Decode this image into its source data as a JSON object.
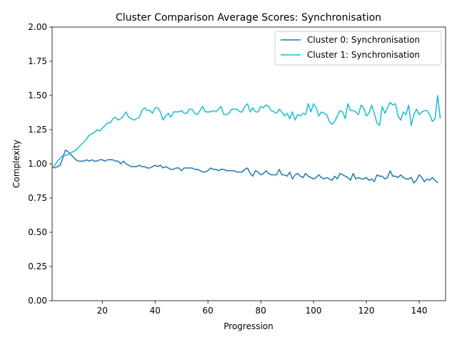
{
  "chart_data": {
    "type": "line",
    "title": "Cluster Comparison Average Scores: Synchronisation",
    "xlabel": "Progression",
    "ylabel": "Complexity",
    "xlim": [
      1,
      150
    ],
    "ylim": [
      0,
      2
    ],
    "xticks": [
      20,
      40,
      60,
      80,
      100,
      120,
      140
    ],
    "yticks": [
      0.0,
      0.25,
      0.5,
      0.75,
      1.0,
      1.25,
      1.5,
      1.75,
      2.0
    ],
    "xtick_labels": [
      "20",
      "40",
      "60",
      "80",
      "100",
      "120",
      "140"
    ],
    "ytick_labels": [
      "0.00",
      "0.25",
      "0.50",
      "0.75",
      "1.00",
      "1.25",
      "1.50",
      "1.75",
      "2.00"
    ],
    "grid": false,
    "legend": "top-right",
    "series": [
      {
        "name": "Cluster 0: Synchronisation",
        "color": "#1f77b4",
        "x_start": 1,
        "values": [
          0.98,
          0.97,
          0.98,
          0.99,
          1.04,
          1.1,
          1.09,
          1.07,
          1.05,
          1.03,
          1.02,
          1.02,
          1.02,
          1.03,
          1.02,
          1.03,
          1.02,
          1.02,
          1.03,
          1.03,
          1.02,
          1.03,
          1.03,
          1.03,
          1.02,
          1.02,
          1.0,
          1.02,
          1.0,
          0.99,
          0.98,
          0.98,
          0.98,
          0.99,
          0.98,
          0.98,
          0.97,
          0.97,
          0.98,
          0.99,
          0.98,
          0.99,
          0.97,
          0.98,
          0.97,
          0.96,
          0.96,
          0.97,
          0.97,
          0.95,
          0.97,
          0.97,
          0.97,
          0.97,
          0.96,
          0.96,
          0.95,
          0.94,
          0.94,
          0.95,
          0.97,
          0.96,
          0.96,
          0.95,
          0.96,
          0.96,
          0.95,
          0.95,
          0.95,
          0.95,
          0.94,
          0.94,
          0.94,
          0.96,
          0.97,
          0.93,
          0.91,
          0.95,
          0.94,
          0.92,
          0.93,
          0.95,
          0.93,
          0.92,
          0.92,
          0.92,
          0.96,
          0.92,
          0.92,
          0.91,
          0.94,
          0.89,
          0.92,
          0.93,
          0.91,
          0.9,
          0.93,
          0.91,
          0.9,
          0.89,
          0.9,
          0.92,
          0.9,
          0.89,
          0.9,
          0.89,
          0.88,
          0.91,
          0.89,
          0.93,
          0.92,
          0.91,
          0.9,
          0.88,
          0.93,
          0.89,
          0.9,
          0.89,
          0.89,
          0.9,
          0.88,
          0.89,
          0.87,
          0.92,
          0.91,
          0.91,
          0.89,
          0.9,
          0.95,
          0.91,
          0.91,
          0.9,
          0.92,
          0.9,
          0.89,
          0.89,
          0.9,
          0.86,
          0.88,
          0.92,
          0.9,
          0.87,
          0.89,
          0.88,
          0.9,
          0.88,
          0.86
        ]
      },
      {
        "name": "Cluster 1: Synchronisation",
        "color": "#17becf",
        "x_start": 1,
        "values": [
          0.97,
          0.99,
          1.02,
          1.04,
          1.06,
          1.06,
          1.07,
          1.08,
          1.09,
          1.1,
          1.12,
          1.14,
          1.16,
          1.18,
          1.21,
          1.22,
          1.23,
          1.25,
          1.24,
          1.26,
          1.28,
          1.3,
          1.3,
          1.33,
          1.34,
          1.32,
          1.33,
          1.35,
          1.38,
          1.34,
          1.33,
          1.32,
          1.33,
          1.34,
          1.39,
          1.41,
          1.39,
          1.39,
          1.37,
          1.41,
          1.41,
          1.38,
          1.32,
          1.35,
          1.37,
          1.34,
          1.38,
          1.38,
          1.38,
          1.39,
          1.37,
          1.37,
          1.4,
          1.4,
          1.37,
          1.36,
          1.39,
          1.42,
          1.38,
          1.38,
          1.38,
          1.39,
          1.38,
          1.4,
          1.42,
          1.36,
          1.36,
          1.37,
          1.4,
          1.4,
          1.4,
          1.38,
          1.38,
          1.42,
          1.44,
          1.38,
          1.41,
          1.38,
          1.38,
          1.42,
          1.41,
          1.43,
          1.42,
          1.39,
          1.38,
          1.37,
          1.4,
          1.38,
          1.35,
          1.37,
          1.33,
          1.38,
          1.32,
          1.36,
          1.35,
          1.37,
          1.36,
          1.44,
          1.38,
          1.44,
          1.41,
          1.35,
          1.38,
          1.37,
          1.36,
          1.31,
          1.29,
          1.31,
          1.35,
          1.39,
          1.38,
          1.33,
          1.44,
          1.39,
          1.39,
          1.38,
          1.36,
          1.43,
          1.41,
          1.35,
          1.37,
          1.43,
          1.37,
          1.3,
          1.28,
          1.42,
          1.37,
          1.41,
          1.45,
          1.43,
          1.44,
          1.35,
          1.32,
          1.38,
          1.36,
          1.43,
          1.28,
          1.36,
          1.4,
          1.36,
          1.38,
          1.39,
          1.39,
          1.36,
          1.31,
          1.33,
          1.5,
          1.33
        ]
      }
    ]
  }
}
